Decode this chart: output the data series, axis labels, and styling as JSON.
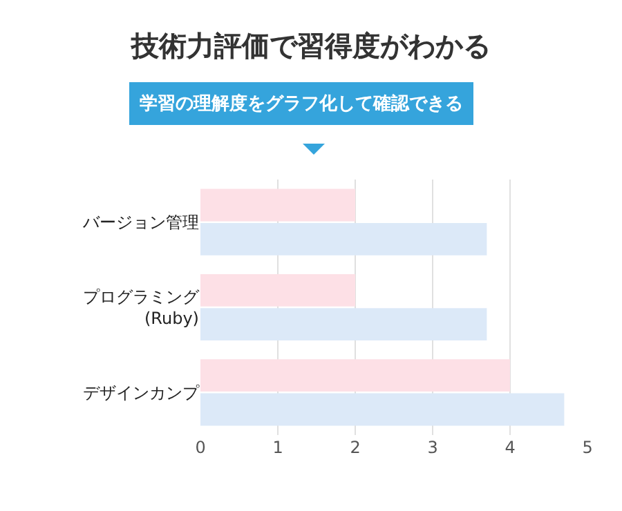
{
  "chart_data": {
    "type": "bar",
    "orientation": "horizontal",
    "title": "技術力評価で習得度がわかる",
    "subtitle": "学習の理解度をグラフ化して確認できる",
    "categories": [
      "バージョン管理",
      "プログラミング\n(Ruby)",
      "デザインカンプ"
    ],
    "series": [
      {
        "color": "#fde0e6",
        "values": [
          2,
          2,
          4
        ]
      },
      {
        "color": "#dce9f8",
        "values": [
          3.7,
          3.7,
          4.7
        ]
      }
    ],
    "xlim": [
      0,
      5
    ],
    "xticks": [
      0,
      1,
      2,
      3,
      4,
      5
    ],
    "grid": "x"
  }
}
